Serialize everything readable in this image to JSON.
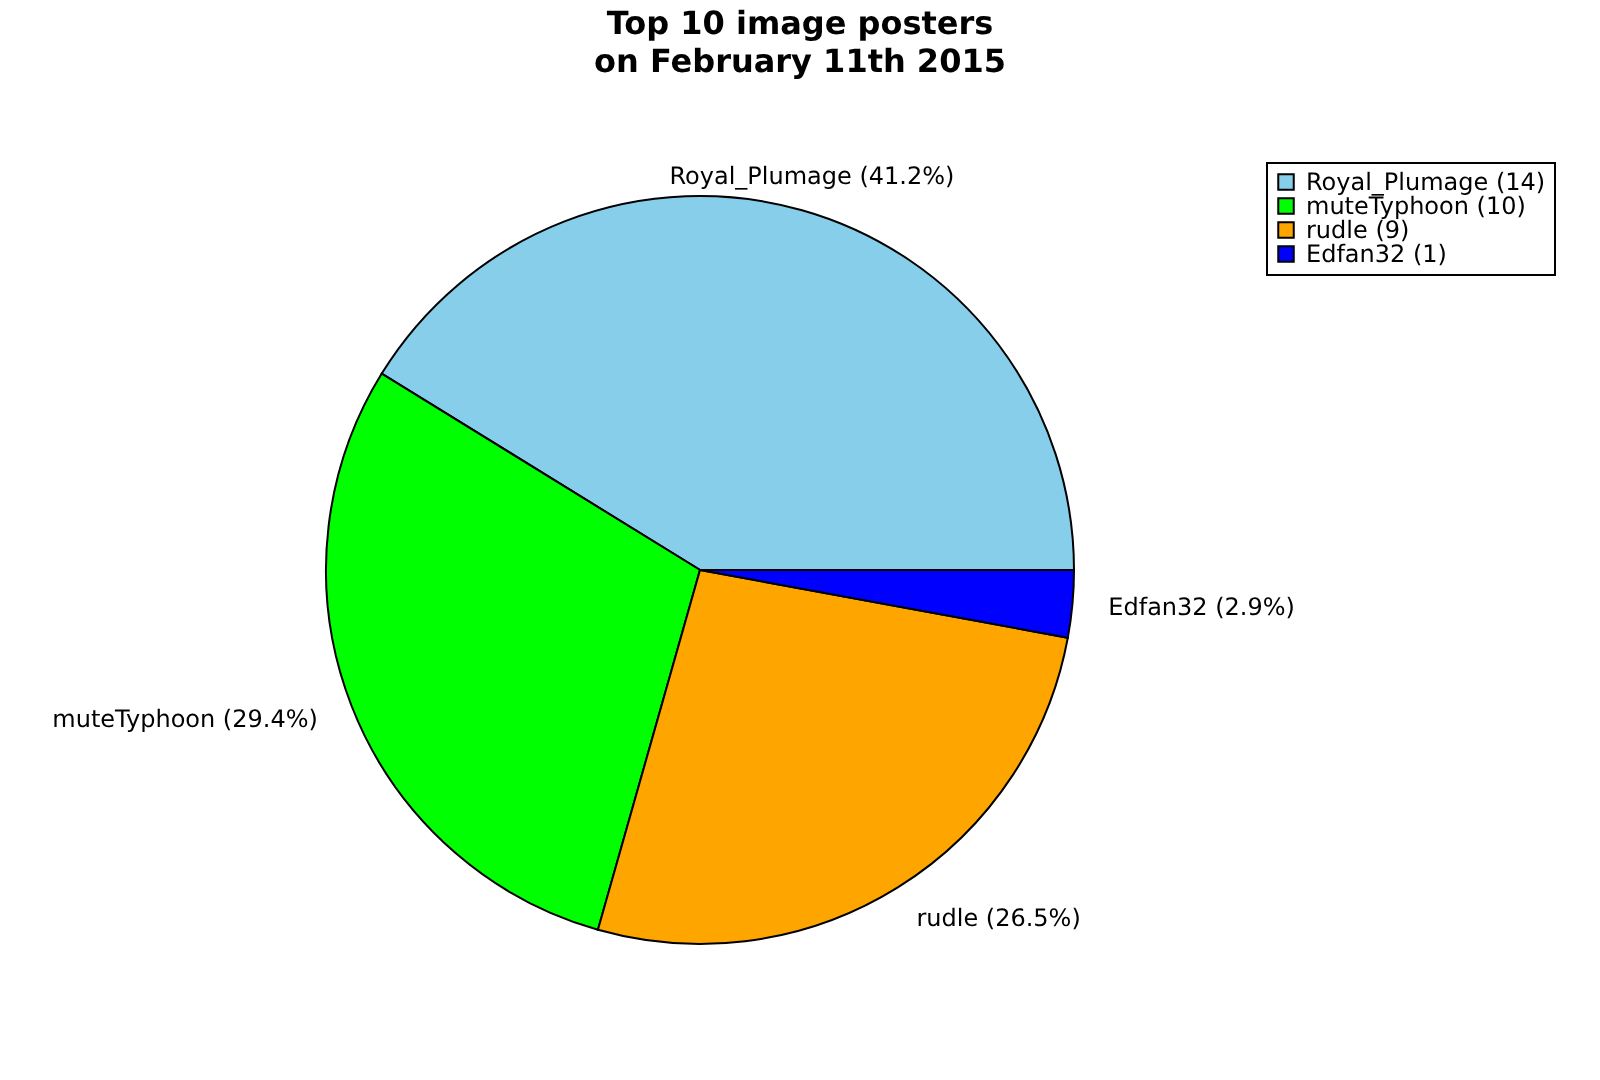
{
  "chart_data": {
    "type": "pie",
    "title": "Top 10 image posters\non February 11th 2015",
    "categories": [
      "Royal_Plumage (14)",
      "muteTyphoon (10)",
      "rudle (9)",
      "Edfan32 (1)"
    ],
    "values": [
      41.2,
      29.4,
      26.5,
      2.9
    ],
    "value_labels": [
      "Royal_Plumage (41.2%)",
      "muteTyphoon (29.4%)",
      "rudle (26.5%)",
      "Edfan32 (2.9%)"
    ],
    "colors": [
      "#87ceeb",
      "#00ff00",
      "#ffa500",
      "#0000ff"
    ],
    "legend": "top right"
  }
}
